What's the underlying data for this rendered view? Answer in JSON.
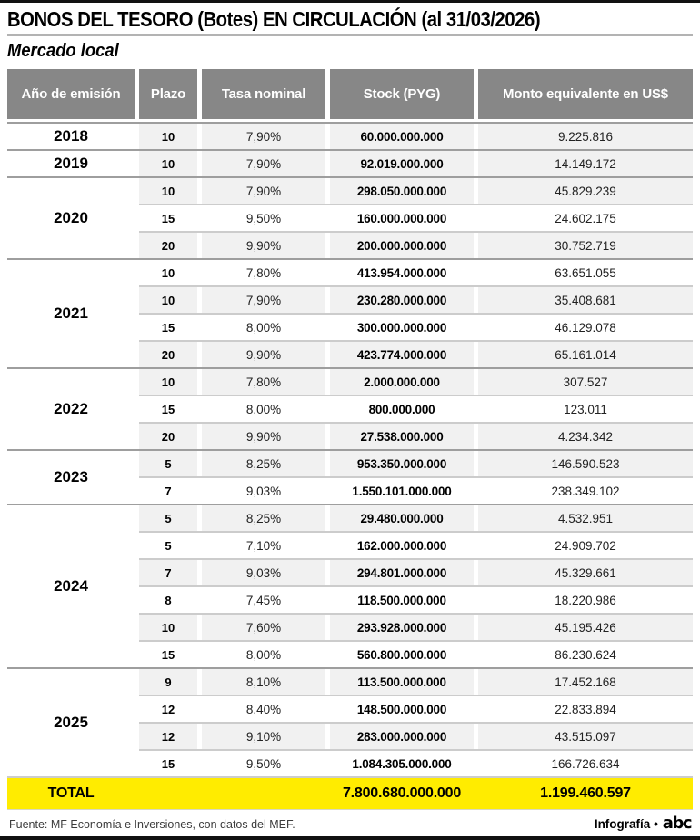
{
  "title": "BONOS DEL TESORO (Botes) EN CIRCULACIÓN (al 31/03/2026)",
  "subtitle": "Mercado local",
  "columns": [
    "Año de emisión",
    "Plazo",
    "Tasa nominal",
    "Stock (PYG)",
    "Monto equivalente en US$"
  ],
  "groups": [
    {
      "year": "2018",
      "rows": [
        {
          "plazo": "10",
          "tasa": "7,90%",
          "stock": "60.000.000.000",
          "monto": "9.225.816",
          "shaded": true
        }
      ]
    },
    {
      "year": "2019",
      "rows": [
        {
          "plazo": "10",
          "tasa": "7,90%",
          "stock": "92.019.000.000",
          "monto": "14.149.172",
          "shaded": true
        }
      ]
    },
    {
      "year": "2020",
      "rows": [
        {
          "plazo": "10",
          "tasa": "7,90%",
          "stock": "298.050.000.000",
          "monto": "45.829.239",
          "shaded": true
        },
        {
          "plazo": "15",
          "tasa": "9,50%",
          "stock": "160.000.000.000",
          "monto": "24.602.175",
          "shaded": false
        },
        {
          "plazo": "20",
          "tasa": "9,90%",
          "stock": "200.000.000.000",
          "monto": "30.752.719",
          "shaded": true
        }
      ]
    },
    {
      "year": "2021",
      "rows": [
        {
          "plazo": "10",
          "tasa": "7,80%",
          "stock": "413.954.000.000",
          "monto": "63.651.055",
          "shaded": false
        },
        {
          "plazo": "10",
          "tasa": "7,90%",
          "stock": "230.280.000.000",
          "monto": "35.408.681",
          "shaded": true
        },
        {
          "plazo": "15",
          "tasa": "8,00%",
          "stock": "300.000.000.000",
          "monto": "46.129.078",
          "shaded": false
        },
        {
          "plazo": "20",
          "tasa": "9,90%",
          "stock": "423.774.000.000",
          "monto": "65.161.014",
          "shaded": true
        }
      ]
    },
    {
      "year": "2022",
      "rows": [
        {
          "plazo": "10",
          "tasa": "7,80%",
          "stock": "2.000.000.000",
          "monto": "307.527",
          "shaded": true
        },
        {
          "plazo": "15",
          "tasa": "8,00%",
          "stock": "800.000.000",
          "monto": "123.011",
          "shaded": false
        },
        {
          "plazo": "20",
          "tasa": "9,90%",
          "stock": "27.538.000.000",
          "monto": "4.234.342",
          "shaded": true
        }
      ]
    },
    {
      "year": "2023",
      "rows": [
        {
          "plazo": "5",
          "tasa": "8,25%",
          "stock": "953.350.000.000",
          "monto": "146.590.523",
          "shaded": true
        },
        {
          "plazo": "7",
          "tasa": "9,03%",
          "stock": "1.550.101.000.000",
          "monto": "238.349.102",
          "shaded": false
        }
      ]
    },
    {
      "year": "2024",
      "rows": [
        {
          "plazo": "5",
          "tasa": "8,25%",
          "stock": "29.480.000.000",
          "monto": "4.532.951",
          "shaded": true
        },
        {
          "plazo": "5",
          "tasa": "7,10%",
          "stock": "162.000.000.000",
          "monto": "24.909.702",
          "shaded": false
        },
        {
          "plazo": "7",
          "tasa": "9,03%",
          "stock": "294.801.000.000",
          "monto": "45.329.661",
          "shaded": true
        },
        {
          "plazo": "8",
          "tasa": "7,45%",
          "stock": "118.500.000.000",
          "monto": "18.220.986",
          "shaded": false
        },
        {
          "plazo": "10",
          "tasa": "7,60%",
          "stock": "293.928.000.000",
          "monto": "45.195.426",
          "shaded": true
        },
        {
          "plazo": "15",
          "tasa": "8,00%",
          "stock": "560.800.000.000",
          "monto": "86.230.624",
          "shaded": false
        }
      ]
    },
    {
      "year": "2025",
      "rows": [
        {
          "plazo": "9",
          "tasa": "8,10%",
          "stock": "113.500.000.000",
          "monto": "17.452.168",
          "shaded": true
        },
        {
          "plazo": "12",
          "tasa": "8,40%",
          "stock": "148.500.000.000",
          "monto": "22.833.894",
          "shaded": false
        },
        {
          "plazo": "12",
          "tasa": "9,10%",
          "stock": "283.000.000.000",
          "monto": "43.515.097",
          "shaded": true
        },
        {
          "plazo": "15",
          "tasa": "9,50%",
          "stock": "1.084.305.000.000",
          "monto": "166.726.634",
          "shaded": false
        }
      ]
    }
  ],
  "total": {
    "label": "TOTAL",
    "stock": "7.800.680.000.000",
    "monto": "1.199.460.597"
  },
  "footer": {
    "source": "Fuente: MF Economía e Inversiones, con datos del MEF.",
    "credit": "Infografía •",
    "brand": "abc"
  },
  "colors": {
    "header_bg": "#878787",
    "stripe": "#f1f1f1",
    "total_bg": "#ffec00",
    "rule": "#b3b3b3",
    "group_sep": "#9e9e9e",
    "row_sep": "#cccccc",
    "bar": "#111111"
  },
  "chart_data": {
    "type": "table",
    "title": "BONOS DEL TESORO (Botes) EN CIRCULACIÓN (al 31/03/2026)",
    "subtitle": "Mercado local",
    "columns": [
      "Año de emisión",
      "Plazo",
      "Tasa nominal",
      "Stock (PYG)",
      "Monto equivalente en US$"
    ],
    "rows": [
      [
        "2018",
        "10",
        "7,90%",
        "60.000.000.000",
        "9.225.816"
      ],
      [
        "2019",
        "10",
        "7,90%",
        "92.019.000.000",
        "14.149.172"
      ],
      [
        "2020",
        "10",
        "7,90%",
        "298.050.000.000",
        "45.829.239"
      ],
      [
        "2020",
        "15",
        "9,50%",
        "160.000.000.000",
        "24.602.175"
      ],
      [
        "2020",
        "20",
        "9,90%",
        "200.000.000.000",
        "30.752.719"
      ],
      [
        "2021",
        "10",
        "7,80%",
        "413.954.000.000",
        "63.651.055"
      ],
      [
        "2021",
        "10",
        "7,90%",
        "230.280.000.000",
        "35.408.681"
      ],
      [
        "2021",
        "15",
        "8,00%",
        "300.000.000.000",
        "46.129.078"
      ],
      [
        "2021",
        "20",
        "9,90%",
        "423.774.000.000",
        "65.161.014"
      ],
      [
        "2022",
        "10",
        "7,80%",
        "2.000.000.000",
        "307.527"
      ],
      [
        "2022",
        "15",
        "8,00%",
        "800.000.000",
        "123.011"
      ],
      [
        "2022",
        "20",
        "9,90%",
        "27.538.000.000",
        "4.234.342"
      ],
      [
        "2023",
        "5",
        "8,25%",
        "953.350.000.000",
        "146.590.523"
      ],
      [
        "2023",
        "7",
        "9,03%",
        "1.550.101.000.000",
        "238.349.102"
      ],
      [
        "2024",
        "5",
        "8,25%",
        "29.480.000.000",
        "4.532.951"
      ],
      [
        "2024",
        "5",
        "7,10%",
        "162.000.000.000",
        "24.909.702"
      ],
      [
        "2024",
        "7",
        "9,03%",
        "294.801.000.000",
        "45.329.661"
      ],
      [
        "2024",
        "8",
        "7,45%",
        "118.500.000.000",
        "18.220.986"
      ],
      [
        "2024",
        "10",
        "7,60%",
        "293.928.000.000",
        "45.195.426"
      ],
      [
        "2024",
        "15",
        "8,00%",
        "560.800.000.000",
        "86.230.624"
      ],
      [
        "2025",
        "9",
        "8,10%",
        "113.500.000.000",
        "17.452.168"
      ],
      [
        "2025",
        "12",
        "8,40%",
        "148.500.000.000",
        "22.833.894"
      ],
      [
        "2025",
        "12",
        "9,10%",
        "283.000.000.000",
        "43.515.097"
      ],
      [
        "2025",
        "15",
        "9,50%",
        "1.084.305.000.000",
        "166.726.634"
      ]
    ],
    "total_row": [
      "TOTAL",
      "",
      "",
      "7.800.680.000.000",
      "1.199.460.597"
    ]
  }
}
